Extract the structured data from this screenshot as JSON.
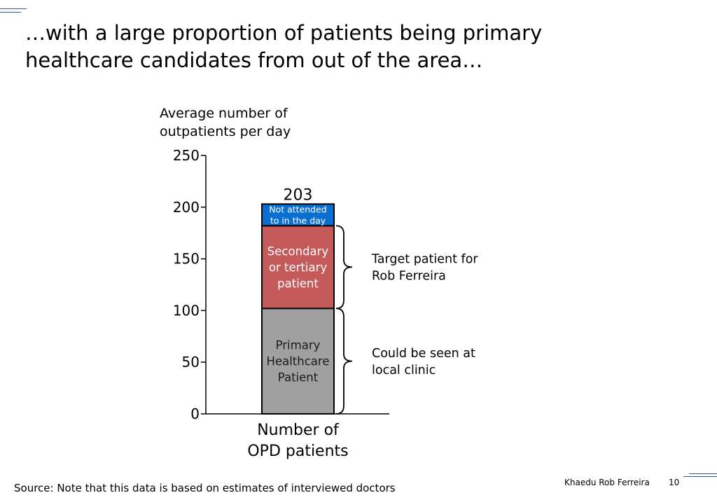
{
  "title": "…with a large proportion of patients being primary healthcare candidates from out of the area…",
  "chart_data": {
    "type": "bar",
    "stacked": true,
    "ylabel": [
      "Average number of",
      "outpatients per day"
    ],
    "xlabel": [
      "Number of",
      "OPD patients"
    ],
    "ylim": [
      0,
      250
    ],
    "yticks": [
      0,
      50,
      100,
      150,
      200,
      250
    ],
    "total": 203,
    "total_label": "203",
    "series": [
      {
        "name": "Primary Healthcare Patient",
        "label_lines": [
          "Primary",
          "Healthcare",
          "Patient"
        ],
        "value": 102,
        "color": "#a0a0a0",
        "text_color": "#1a1a1a"
      },
      {
        "name": "Secondary or tertiary patient",
        "label_lines": [
          "Secondary",
          "or tertiary",
          "patient"
        ],
        "value": 80,
        "color": "#c55a5a",
        "text_color": "#ffffff"
      },
      {
        "name": "Not attended to in the day",
        "label_lines": [
          "Not attended",
          "to in the day"
        ],
        "value": 21,
        "color": "#0b6fd1",
        "text_color": "#ffffff"
      }
    ],
    "annotations": [
      {
        "text_lines": [
          "Could be seen at",
          "local clinic"
        ],
        "from": 0,
        "to": 102
      },
      {
        "text_lines": [
          "Target patient for",
          "Rob Ferreira"
        ],
        "from": 102,
        "to": 182
      }
    ],
    "grid": false,
    "legend": "none"
  },
  "footer": {
    "source": "Source: Note that this data is based on estimates of interviewed doctors",
    "org": "Khaedu Rob Ferreira",
    "page": "10"
  }
}
